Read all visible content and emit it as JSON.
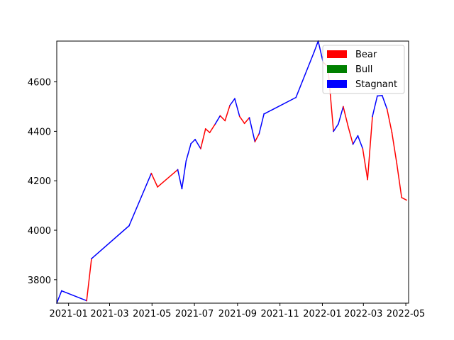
{
  "chart_data": {
    "type": "line",
    "x_axis": {
      "type": "date",
      "range": [
        "2020-12-15",
        "2022-05-05"
      ],
      "ticks": [
        "2021-01-01",
        "2021-03-01",
        "2021-05-01",
        "2021-07-01",
        "2021-09-01",
        "2021-11-01",
        "2022-01-01",
        "2022-03-01",
        "2022-05-01"
      ],
      "tick_labels": [
        "2021-01",
        "2021-03",
        "2021-05",
        "2021-07",
        "2021-09",
        "2021-11",
        "2022-01",
        "2022-03",
        "2022-05"
      ]
    },
    "y_axis": {
      "range": [
        3705,
        4765
      ],
      "ticks": [
        3800,
        4000,
        4200,
        4400,
        4600
      ],
      "tick_labels": [
        "3800",
        "4000",
        "4200",
        "4400",
        "4600"
      ]
    },
    "legend": {
      "placement": "upper-right",
      "entries": [
        {
          "label": "Bear",
          "color": "#ff0000"
        },
        {
          "label": "Bull",
          "color": "#008000"
        },
        {
          "label": "Stagnant",
          "color": "#0000ff"
        }
      ]
    },
    "colors": {
      "Bear": "#ff0000",
      "Bull": "#008000",
      "Stagnant": "#0000ff"
    },
    "grid": false,
    "points": [
      {
        "date": "2020-12-15",
        "value": 3705,
        "regime": "Bear"
      },
      {
        "date": "2020-12-22",
        "value": 3755,
        "regime": "Stagnant"
      },
      {
        "date": "2021-01-27",
        "value": 3715,
        "regime": "Stagnant"
      },
      {
        "date": "2021-02-03",
        "value": 3885,
        "regime": "Bear"
      },
      {
        "date": "2021-03-29",
        "value": 4018,
        "regime": "Stagnant"
      },
      {
        "date": "2021-04-30",
        "value": 4230,
        "regime": "Stagnant"
      },
      {
        "date": "2021-05-09",
        "value": 4175,
        "regime": "Bear"
      },
      {
        "date": "2021-06-07",
        "value": 4245,
        "regime": "Bear"
      },
      {
        "date": "2021-06-13",
        "value": 4168,
        "regime": "Stagnant"
      },
      {
        "date": "2021-06-19",
        "value": 4280,
        "regime": "Stagnant"
      },
      {
        "date": "2021-06-26",
        "value": 4350,
        "regime": "Stagnant"
      },
      {
        "date": "2021-07-02",
        "value": 4367,
        "regime": "Stagnant"
      },
      {
        "date": "2021-07-10",
        "value": 4330,
        "regime": "Stagnant"
      },
      {
        "date": "2021-07-17",
        "value": 4410,
        "regime": "Bear"
      },
      {
        "date": "2021-07-23",
        "value": 4395,
        "regime": "Bear"
      },
      {
        "date": "2021-07-31",
        "value": 4430,
        "regime": "Bear"
      },
      {
        "date": "2021-08-07",
        "value": 4463,
        "regime": "Stagnant"
      },
      {
        "date": "2021-08-14",
        "value": 4443,
        "regime": "Bear"
      },
      {
        "date": "2021-08-21",
        "value": 4505,
        "regime": "Bear"
      },
      {
        "date": "2021-08-28",
        "value": 4532,
        "regime": "Stagnant"
      },
      {
        "date": "2021-09-04",
        "value": 4460,
        "regime": "Stagnant"
      },
      {
        "date": "2021-09-11",
        "value": 4432,
        "regime": "Bear"
      },
      {
        "date": "2021-09-18",
        "value": 4455,
        "regime": "Bear"
      },
      {
        "date": "2021-09-26",
        "value": 4358,
        "regime": "Stagnant"
      },
      {
        "date": "2021-10-02",
        "value": 4390,
        "regime": "Bear"
      },
      {
        "date": "2021-10-09",
        "value": 4470,
        "regime": "Stagnant"
      },
      {
        "date": "2021-11-24",
        "value": 4537,
        "regime": "Stagnant"
      },
      {
        "date": "2021-12-20",
        "value": 4720,
        "regime": "Stagnant"
      },
      {
        "date": "2021-12-26",
        "value": 4765,
        "regime": "Stagnant"
      },
      {
        "date": "2022-01-02",
        "value": 4680,
        "regime": "Stagnant"
      },
      {
        "date": "2022-01-09",
        "value": 4660,
        "regime": "Bear"
      },
      {
        "date": "2022-01-17",
        "value": 4400,
        "regime": "Bear"
      },
      {
        "date": "2022-01-24",
        "value": 4430,
        "regime": "Stagnant"
      },
      {
        "date": "2022-01-31",
        "value": 4500,
        "regime": "Stagnant"
      },
      {
        "date": "2022-02-07",
        "value": 4420,
        "regime": "Bear"
      },
      {
        "date": "2022-02-14",
        "value": 4348,
        "regime": "Bear"
      },
      {
        "date": "2022-02-21",
        "value": 4382,
        "regime": "Stagnant"
      },
      {
        "date": "2022-02-28",
        "value": 4330,
        "regime": "Stagnant"
      },
      {
        "date": "2022-03-07",
        "value": 4205,
        "regime": "Bear"
      },
      {
        "date": "2022-03-14",
        "value": 4460,
        "regime": "Bear"
      },
      {
        "date": "2022-03-21",
        "value": 4543,
        "regime": "Stagnant"
      },
      {
        "date": "2022-03-28",
        "value": 4545,
        "regime": "Stagnant"
      },
      {
        "date": "2022-04-04",
        "value": 4490,
        "regime": "Stagnant"
      },
      {
        "date": "2022-04-11",
        "value": 4395,
        "regime": "Bear"
      },
      {
        "date": "2022-04-18",
        "value": 4270,
        "regime": "Bear"
      },
      {
        "date": "2022-04-25",
        "value": 4132,
        "regime": "Bear"
      },
      {
        "date": "2022-05-02",
        "value": 4122,
        "regime": "Bear"
      }
    ]
  }
}
